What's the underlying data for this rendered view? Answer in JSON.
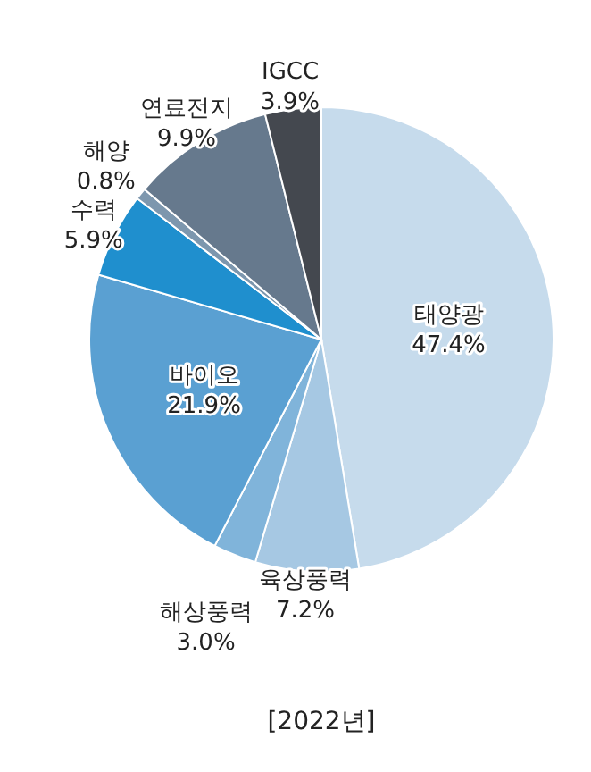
{
  "chart_data": {
    "type": "pie",
    "categories": [
      "태양광",
      "육상풍력",
      "해상풍력",
      "바이오",
      "수력",
      "해양",
      "연료전지",
      "IGCC"
    ],
    "values": [
      47.4,
      7.2,
      3.0,
      21.9,
      5.9,
      0.8,
      9.9,
      3.9
    ],
    "colors": [
      "#c6dbec",
      "#a6c8e3",
      "#80b4da",
      "#5aa0d2",
      "#1f8fce",
      "#7d97ae",
      "#66798d",
      "#44484f"
    ],
    "value_labels": [
      "47.4%",
      "7.2%",
      "3.0%",
      "21.9%",
      "5.9%",
      "0.8%",
      "9.9%",
      "3.9%"
    ],
    "annotations": [
      "[2022년]"
    ]
  }
}
